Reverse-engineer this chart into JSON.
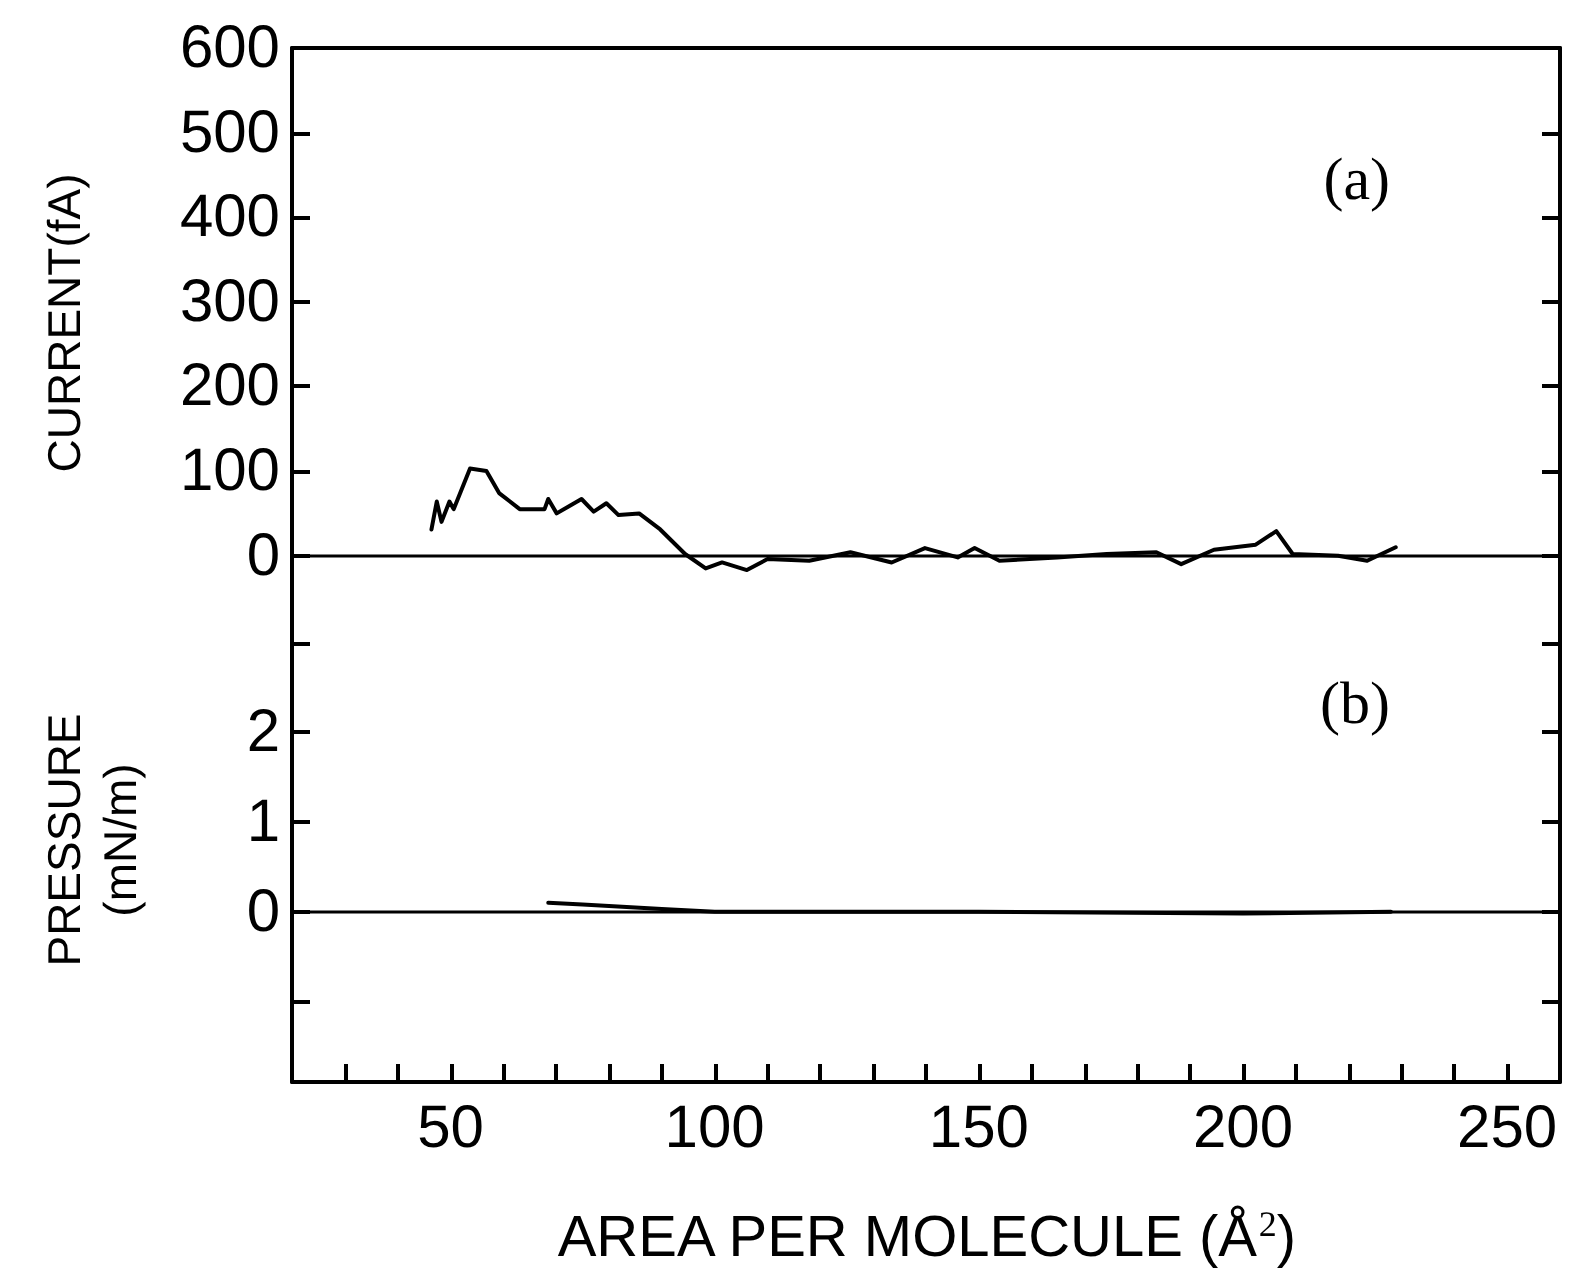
{
  "chart_data": [
    {
      "type": "line",
      "ylabel": "CURRENT(fA)",
      "xlim": [
        20,
        260
      ],
      "ylim": [
        -50,
        600
      ],
      "yticks": [
        0,
        100,
        200,
        300,
        400,
        500,
        600
      ],
      "tick_labels": "y",
      "marker": "none",
      "line_style": "solid",
      "annotations": [
        "(a)"
      ],
      "ref_lines": [
        {
          "axis": "y",
          "value": 0,
          "color": "#000000"
        }
      ],
      "series": [
        {
          "color": "#000000",
          "x": [
            46.4,
            47.4,
            48.3,
            49.8,
            50.6,
            53.7,
            56.8,
            59.2,
            63.1,
            67.8,
            68.5,
            70.1,
            74.8,
            77.1,
            79.5,
            81.8,
            85.7,
            89.7,
            94.4,
            98.3,
            101.4,
            106.1,
            110,
            117.9,
            125.7,
            133.5,
            139.8,
            146,
            149.2,
            153.9,
            164.8,
            174.2,
            183.6,
            188.3,
            194.5,
            202.4,
            206.3,
            209.4,
            218,
            223.5,
            228.9
          ],
          "values": [
            31,
            64,
            40,
            64,
            55,
            103,
            100,
            74,
            55,
            55,
            67,
            50,
            67,
            52,
            62,
            48,
            50,
            31,
            2,
            -15,
            -8,
            -17,
            -4,
            -6,
            4,
            -8,
            9,
            -2,
            9,
            -6,
            -2,
            2,
            4,
            -10,
            7,
            13,
            29,
            2,
            0,
            -6,
            10
          ]
        }
      ]
    },
    {
      "type": "line",
      "ylabel": "PRESSURE\n(mN/m)",
      "xlabel": "AREA PER MOLECULE (Å$^{2}$)",
      "xlim": [
        20,
        260
      ],
      "xticks": [
        {
          "value": 30,
          "label": null
        },
        {
          "value": 40,
          "label": null
        },
        50,
        {
          "value": 60,
          "label": null
        },
        {
          "value": 70,
          "label": null
        },
        {
          "value": 80,
          "label": null
        },
        {
          "value": 90,
          "label": null
        },
        100,
        {
          "value": 110,
          "label": null
        },
        {
          "value": 120,
          "label": null
        },
        {
          "value": 130,
          "label": null
        },
        {
          "value": 140,
          "label": null
        },
        150,
        {
          "value": 160,
          "label": null
        },
        {
          "value": 170,
          "label": null
        },
        {
          "value": 180,
          "label": null
        },
        {
          "value": 190,
          "label": null
        },
        200,
        {
          "value": 210,
          "label": null
        },
        {
          "value": 220,
          "label": null
        },
        {
          "value": 230,
          "label": null
        },
        {
          "value": 240,
          "label": null
        },
        250
      ],
      "ylim": [
        -1.9,
        3.5
      ],
      "yticks": [
        {
          "value": -1,
          "label": null
        },
        0,
        1,
        2,
        {
          "value": 3,
          "label": null
        }
      ],
      "marker": "none",
      "line_style": "solid",
      "annotations": [
        "(b)"
      ],
      "ref_lines": [
        {
          "axis": "y",
          "value": 0,
          "color": "#000000"
        }
      ],
      "series": [
        {
          "color": "#000000",
          "x": [
            68.5,
            75,
            90,
            100,
            150,
            200,
            228
          ],
          "values": [
            0.1,
            0.08,
            0.03,
            0,
            0,
            -0.02,
            0
          ]
        }
      ]
    }
  ]
}
